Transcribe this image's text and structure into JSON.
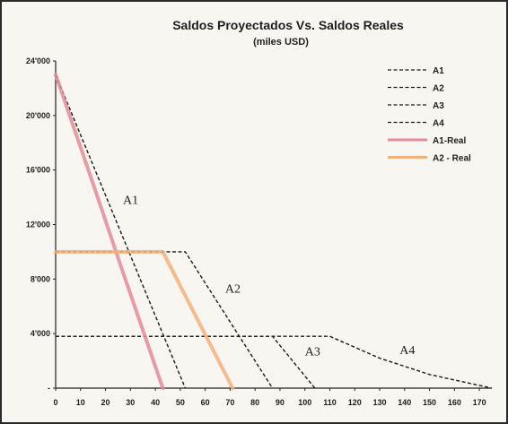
{
  "chart_data": {
    "type": "line",
    "title": "Saldos Proyectados Vs. Saldos Reales",
    "subtitle": "(miles USD)",
    "xlim": [
      0,
      175
    ],
    "ylim": [
      0,
      24000
    ],
    "x_ticks": [
      0,
      10,
      20,
      30,
      40,
      50,
      60,
      70,
      80,
      90,
      100,
      110,
      120,
      130,
      140,
      150,
      160,
      170
    ],
    "x_tick_labels": [
      "0",
      "10",
      "20",
      "30",
      "40",
      "50",
      "60",
      "70",
      "80",
      "90",
      "100",
      "110",
      "120",
      "130",
      "140",
      "150",
      "160",
      "170"
    ],
    "y_ticks": [
      0,
      4000,
      8000,
      12000,
      16000,
      20000,
      24000
    ],
    "y_tick_labels": [
      "-",
      "4'000",
      "8'000",
      "12'000",
      "16'000",
      "20'000",
      "24'000"
    ],
    "grid": false,
    "legend_position": "top-right",
    "series": [
      {
        "name": "A1",
        "style": "dashed",
        "color": "#1a1a1a",
        "x": [
          0,
          52
        ],
        "y": [
          23000,
          0
        ]
      },
      {
        "name": "A2",
        "style": "dashed",
        "color": "#1a1a1a",
        "x": [
          0,
          52,
          87
        ],
        "y": [
          10000,
          10000,
          0
        ]
      },
      {
        "name": "A3",
        "style": "dashed",
        "color": "#1a1a1a",
        "x": [
          0,
          87,
          104
        ],
        "y": [
          3800,
          3800,
          0
        ]
      },
      {
        "name": "A4",
        "style": "dashed",
        "color": "#1a1a1a",
        "x": [
          0,
          110,
          130,
          150,
          165,
          175
        ],
        "y": [
          3800,
          3800,
          2200,
          1000,
          400,
          0
        ]
      },
      {
        "name": "A1-Real",
        "style": "solid",
        "color": "#e88a98",
        "x": [
          0,
          15,
          27,
          43
        ],
        "y": [
          23000,
          15000,
          8500,
          0
        ]
      },
      {
        "name": "A2 - Real",
        "style": "solid",
        "color": "#f3b07a",
        "x": [
          0,
          43,
          57,
          71
        ],
        "y": [
          10000,
          10000,
          5000,
          0
        ]
      }
    ],
    "annotations": [
      {
        "text": "A1",
        "x": 27,
        "y": 13500
      },
      {
        "text": "A2",
        "x": 68,
        "y": 7000
      },
      {
        "text": "A3",
        "x": 100,
        "y": 2400
      },
      {
        "text": "A4",
        "x": 138,
        "y": 2500
      }
    ]
  },
  "colors": {
    "dashed": "#1a1a1a",
    "a1_real": "#e88a98",
    "a2_real": "#f3b07a",
    "green_series": "#7dbf9a",
    "background": "#f7f6f1"
  }
}
